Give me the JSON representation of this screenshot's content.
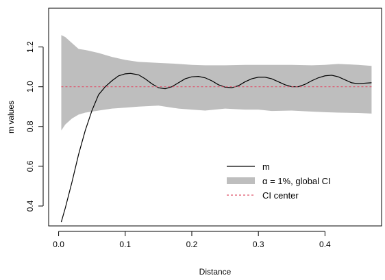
{
  "chart_data": {
    "type": "line",
    "xlabel": "Distance",
    "ylabel": "m values",
    "xlim": [
      -0.015,
      0.485
    ],
    "ylim": [
      0.3,
      1.395
    ],
    "x_ticks": [
      0.0,
      0.1,
      0.2,
      0.3,
      0.4
    ],
    "x_tick_labels": [
      "0.0",
      "0.1",
      "0.2",
      "0.3",
      "0.4"
    ],
    "y_ticks": [
      0.4,
      0.6,
      0.8,
      1.0,
      1.2
    ],
    "y_tick_labels": [
      "0.4",
      "0.6",
      "0.8",
      "1.0",
      "1.2"
    ],
    "grid": false,
    "legend_position": "bottom-right",
    "legend": [
      {
        "label": "m",
        "kind": "line",
        "color": "#000000"
      },
      {
        "label": "α = 1%, global CI",
        "kind": "band",
        "color": "#bebebe"
      },
      {
        "label": "CI center",
        "kind": "dashed-line",
        "color": "#df536b"
      }
    ],
    "series": [
      {
        "name": "m",
        "color": "#000000",
        "x": [
          0.004,
          0.01,
          0.02,
          0.03,
          0.04,
          0.05,
          0.06,
          0.07,
          0.08,
          0.09,
          0.1,
          0.108,
          0.12,
          0.13,
          0.14,
          0.15,
          0.16,
          0.17,
          0.18,
          0.19,
          0.2,
          0.21,
          0.22,
          0.23,
          0.24,
          0.25,
          0.26,
          0.27,
          0.28,
          0.29,
          0.3,
          0.31,
          0.32,
          0.33,
          0.34,
          0.35,
          0.36,
          0.37,
          0.38,
          0.39,
          0.4,
          0.41,
          0.42,
          0.43,
          0.44,
          0.45,
          0.46,
          0.47
        ],
        "y": [
          0.32,
          0.39,
          0.52,
          0.66,
          0.78,
          0.88,
          0.96,
          1.0,
          1.03,
          1.055,
          1.065,
          1.067,
          1.06,
          1.04,
          1.015,
          0.995,
          0.99,
          1.0,
          1.02,
          1.04,
          1.05,
          1.052,
          1.045,
          1.03,
          1.01,
          0.998,
          0.995,
          1.005,
          1.025,
          1.04,
          1.048,
          1.048,
          1.04,
          1.025,
          1.01,
          1.0,
          1.0,
          1.012,
          1.03,
          1.045,
          1.055,
          1.058,
          1.05,
          1.035,
          1.02,
          1.015,
          1.018,
          1.02
        ]
      },
      {
        "name": "CI center",
        "color": "#df536b",
        "x": [
          0.004,
          0.47
        ],
        "y": [
          1.0,
          1.0
        ]
      }
    ],
    "band": {
      "name": "α = 1%, global CI",
      "color": "#bebebe",
      "x": [
        0.004,
        0.01,
        0.02,
        0.03,
        0.04,
        0.06,
        0.08,
        0.1,
        0.12,
        0.15,
        0.18,
        0.2,
        0.22,
        0.25,
        0.28,
        0.3,
        0.32,
        0.35,
        0.38,
        0.4,
        0.42,
        0.45,
        0.47
      ],
      "upper": [
        1.26,
        1.25,
        1.22,
        1.19,
        1.185,
        1.17,
        1.15,
        1.135,
        1.125,
        1.12,
        1.115,
        1.11,
        1.108,
        1.108,
        1.11,
        1.11,
        1.11,
        1.11,
        1.108,
        1.11,
        1.115,
        1.11,
        1.105
      ],
      "lower": [
        0.78,
        0.81,
        0.84,
        0.86,
        0.87,
        0.88,
        0.89,
        0.895,
        0.9,
        0.905,
        0.89,
        0.885,
        0.88,
        0.89,
        0.885,
        0.885,
        0.878,
        0.88,
        0.875,
        0.872,
        0.87,
        0.868,
        0.865
      ]
    }
  }
}
